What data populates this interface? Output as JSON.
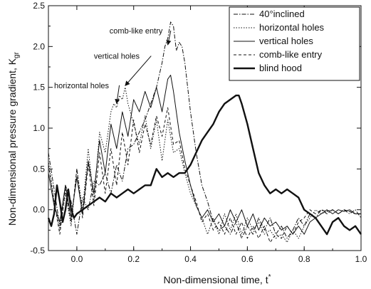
{
  "chart_data": {
    "type": "line",
    "xlabel": "Non-dimensional time, t",
    "xlabel_sup": "*",
    "ylabel": "Non-dimensional pressure gradient, K",
    "ylabel_sub": "gr",
    "xlim": [
      -0.1,
      1.0
    ],
    "ylim": [
      -0.5,
      2.5
    ],
    "xticks": [
      "0.0",
      "0.2",
      "0.4",
      "0.6",
      "0.8",
      "1.0"
    ],
    "xtick_values": [
      0.0,
      0.2,
      0.4,
      0.6,
      0.8,
      1.0
    ],
    "yticks": [
      "-0.5",
      "0.0",
      "0.5",
      "1.0",
      "1.5",
      "2.0",
      "2.5"
    ],
    "ytick_values": [
      -0.5,
      0.0,
      0.5,
      1.0,
      1.5,
      2.0,
      2.5
    ],
    "grid": false,
    "legend_position": "top-right",
    "series": [
      {
        "name": "40°inclined",
        "style": "dashdot",
        "width": 1,
        "x": [
          -0.1,
          -0.08,
          -0.06,
          -0.04,
          -0.02,
          0.0,
          0.02,
          0.04,
          0.06,
          0.08,
          0.1,
          0.12,
          0.14,
          0.16,
          0.18,
          0.2,
          0.22,
          0.24,
          0.26,
          0.28,
          0.3,
          0.31,
          0.32,
          0.33,
          0.34,
          0.35,
          0.36,
          0.37,
          0.38,
          0.4,
          0.42,
          0.44,
          0.46,
          0.48,
          0.5,
          0.52,
          0.54,
          0.56,
          0.58,
          0.6,
          0.62,
          0.64,
          0.66,
          0.68,
          0.7,
          0.72,
          0.74,
          0.76,
          0.78,
          0.8,
          0.82,
          0.84,
          0.86,
          0.88,
          0.9,
          0.92,
          0.94,
          0.96,
          0.98,
          1.0
        ],
        "y": [
          0.7,
          0.25,
          -0.2,
          0.3,
          0.1,
          -0.3,
          0.15,
          0.0,
          0.35,
          0.3,
          0.45,
          0.2,
          0.55,
          0.35,
          0.75,
          0.8,
          0.95,
          1.1,
          1.3,
          1.5,
          1.8,
          2.0,
          2.1,
          2.3,
          2.25,
          1.95,
          2.05,
          2.0,
          1.8,
          1.2,
          0.7,
          0.3,
          0.1,
          -0.15,
          -0.25,
          -0.2,
          -0.3,
          -0.15,
          -0.35,
          -0.2,
          -0.3,
          -0.1,
          -0.25,
          -0.1,
          -0.3,
          -0.2,
          -0.35,
          -0.25,
          -0.1,
          -0.2,
          -0.05,
          -0.1,
          0.0,
          -0.05,
          0.0,
          -0.05,
          0.0,
          -0.05,
          0.0,
          -0.1
        ]
      },
      {
        "name": "horizontal holes",
        "style": "dotted",
        "width": 1,
        "x": [
          -0.1,
          -0.08,
          -0.06,
          -0.04,
          -0.02,
          0.0,
          0.02,
          0.04,
          0.06,
          0.08,
          0.1,
          0.12,
          0.13,
          0.14,
          0.15,
          0.16,
          0.17,
          0.18,
          0.2,
          0.22,
          0.24,
          0.26,
          0.28,
          0.3,
          0.32,
          0.34,
          0.36,
          0.38,
          0.4,
          0.42,
          0.44,
          0.46,
          0.48,
          0.5,
          0.52,
          0.54,
          0.56,
          0.58,
          0.6,
          0.62,
          0.64,
          0.66,
          0.68,
          0.7,
          0.72,
          0.74,
          0.76,
          0.78,
          0.8,
          0.82,
          0.84,
          0.86,
          0.88,
          0.9,
          0.92,
          0.94,
          0.96,
          0.98,
          1.0
        ],
        "y": [
          0.6,
          0.1,
          -0.25,
          0.2,
          -0.2,
          0.5,
          0.0,
          0.75,
          0.1,
          0.95,
          0.7,
          1.2,
          1.3,
          1.25,
          1.4,
          1.35,
          1.5,
          1.3,
          1.05,
          0.8,
          1.15,
          0.75,
          1.1,
          0.6,
          1.1,
          0.7,
          0.75,
          0.45,
          0.2,
          0.05,
          -0.1,
          -0.3,
          -0.1,
          -0.3,
          -0.05,
          -0.25,
          -0.05,
          -0.3,
          -0.1,
          -0.25,
          -0.15,
          -0.3,
          -0.25,
          -0.35,
          -0.3,
          -0.4,
          -0.25,
          -0.35,
          -0.2,
          -0.1,
          0.0,
          -0.05,
          -0.02,
          0.0,
          -0.05,
          0.0,
          -0.02,
          -0.05,
          -0.05
        ]
      },
      {
        "name": "vertical holes",
        "style": "solid",
        "width": 1,
        "x": [
          -0.1,
          -0.08,
          -0.06,
          -0.04,
          -0.02,
          0.0,
          0.02,
          0.04,
          0.06,
          0.08,
          0.1,
          0.12,
          0.14,
          0.16,
          0.18,
          0.2,
          0.22,
          0.24,
          0.26,
          0.28,
          0.3,
          0.32,
          0.33,
          0.34,
          0.36,
          0.38,
          0.4,
          0.42,
          0.44,
          0.46,
          0.48,
          0.5,
          0.52,
          0.54,
          0.56,
          0.58,
          0.6,
          0.62,
          0.64,
          0.66,
          0.68,
          0.7,
          0.72,
          0.74,
          0.76,
          0.78,
          0.8,
          0.82,
          0.84,
          0.86,
          0.88,
          0.9,
          0.92,
          0.94,
          0.96,
          0.98,
          1.0
        ],
        "y": [
          0.45,
          0.05,
          -0.15,
          0.3,
          -0.1,
          0.4,
          -0.05,
          0.6,
          0.2,
          0.85,
          0.45,
          1.05,
          0.75,
          1.2,
          0.9,
          1.35,
          1.2,
          1.45,
          1.25,
          1.5,
          1.2,
          1.6,
          1.65,
          1.45,
          0.95,
          0.6,
          0.3,
          0.05,
          -0.1,
          0.0,
          -0.15,
          -0.05,
          -0.2,
          0.0,
          -0.15,
          0.0,
          -0.2,
          -0.05,
          -0.25,
          -0.1,
          -0.2,
          -0.15,
          -0.25,
          -0.2,
          -0.3,
          -0.2,
          -0.3,
          -0.15,
          -0.1,
          -0.05,
          0.0,
          -0.05,
          0.0,
          -0.02,
          0.0,
          -0.05,
          -0.05
        ]
      },
      {
        "name": "comb-like entry",
        "style": "dashed",
        "width": 1,
        "x": [
          -0.1,
          -0.08,
          -0.06,
          -0.04,
          -0.02,
          0.0,
          0.02,
          0.04,
          0.06,
          0.08,
          0.1,
          0.12,
          0.14,
          0.16,
          0.18,
          0.2,
          0.22,
          0.24,
          0.26,
          0.28,
          0.3,
          0.32,
          0.34,
          0.36,
          0.38,
          0.4,
          0.42,
          0.44,
          0.46,
          0.48,
          0.5,
          0.52,
          0.54,
          0.56,
          0.58,
          0.6,
          0.62,
          0.64,
          0.66,
          0.68,
          0.7,
          0.72,
          0.74,
          0.76,
          0.78,
          0.8,
          0.82,
          0.84,
          0.86,
          0.88,
          0.9,
          0.92,
          0.94,
          0.96,
          0.98,
          1.0
        ],
        "y": [
          0.55,
          0.1,
          -0.3,
          0.25,
          -0.15,
          0.5,
          -0.1,
          0.55,
          0.05,
          0.7,
          0.2,
          0.75,
          0.3,
          0.95,
          0.55,
          1.1,
          0.7,
          1.05,
          0.8,
          1.15,
          0.9,
          1.25,
          0.8,
          0.85,
          0.5,
          0.3,
          0.1,
          -0.15,
          -0.05,
          -0.25,
          -0.15,
          -0.3,
          -0.1,
          -0.3,
          -0.15,
          -0.35,
          -0.2,
          -0.35,
          -0.2,
          -0.4,
          -0.3,
          -0.35,
          -0.2,
          -0.3,
          -0.15,
          -0.1,
          0.0,
          -0.05,
          0.0,
          -0.02,
          0.0,
          -0.05,
          0.0,
          -0.02,
          -0.05,
          -0.05
        ]
      },
      {
        "name": "blind hood",
        "style": "solid",
        "width": 2.4,
        "x": [
          -0.1,
          -0.09,
          -0.08,
          -0.07,
          -0.06,
          -0.05,
          -0.04,
          -0.03,
          -0.02,
          -0.01,
          0.0,
          0.02,
          0.04,
          0.06,
          0.08,
          0.1,
          0.12,
          0.14,
          0.16,
          0.18,
          0.2,
          0.22,
          0.24,
          0.26,
          0.28,
          0.3,
          0.32,
          0.34,
          0.36,
          0.38,
          0.4,
          0.42,
          0.44,
          0.46,
          0.48,
          0.5,
          0.52,
          0.54,
          0.56,
          0.57,
          0.58,
          0.6,
          0.62,
          0.64,
          0.66,
          0.68,
          0.7,
          0.72,
          0.74,
          0.76,
          0.78,
          0.8,
          0.82,
          0.84,
          0.86,
          0.88,
          0.9,
          0.92,
          0.94,
          0.96,
          0.98,
          1.0
        ],
        "y": [
          -0.1,
          -0.2,
          -0.05,
          0.3,
          0.1,
          -0.15,
          0.0,
          0.25,
          0.0,
          -0.1,
          -0.05,
          0.0,
          0.05,
          0.1,
          0.15,
          0.1,
          0.2,
          0.15,
          0.2,
          0.25,
          0.2,
          0.25,
          0.3,
          0.3,
          0.5,
          0.4,
          0.45,
          0.4,
          0.45,
          0.45,
          0.55,
          0.7,
          0.85,
          0.95,
          1.05,
          1.2,
          1.3,
          1.35,
          1.4,
          1.4,
          1.3,
          1.05,
          0.75,
          0.45,
          0.3,
          0.2,
          0.25,
          0.2,
          0.25,
          0.2,
          0.15,
          0.0,
          -0.05,
          -0.1,
          -0.2,
          -0.3,
          -0.15,
          -0.1,
          -0.2,
          -0.25,
          -0.2,
          -0.3
        ]
      }
    ],
    "annotations": [
      {
        "text": "comb-like entry",
        "at": [
          0.115,
          2.16
        ],
        "arrow_to": [
          0.32,
          2.02
        ]
      },
      {
        "text": "vertical holes",
        "at": [
          0.06,
          1.85
        ],
        "arrow_to": [
          0.17,
          1.52
        ]
      },
      {
        "text": "horizontal holes",
        "at": [
          -0.08,
          1.49
        ],
        "arrow_to": [
          0.14,
          1.3
        ]
      }
    ]
  }
}
